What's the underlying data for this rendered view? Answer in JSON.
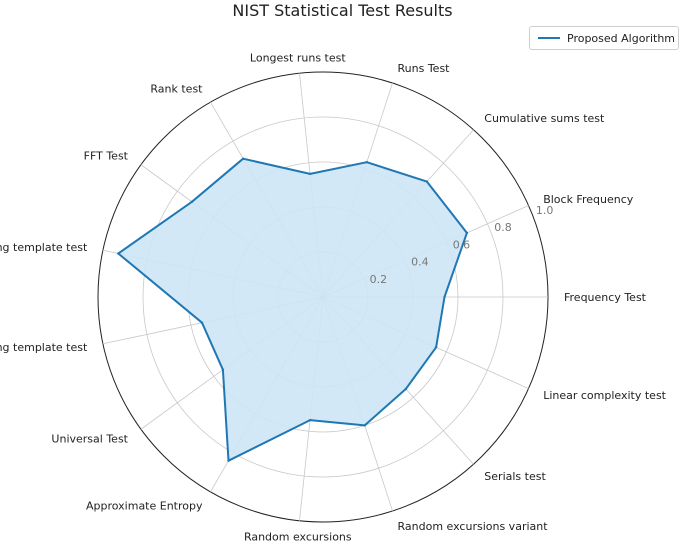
{
  "chart_data": {
    "type": "radar",
    "title": "NIST Statistical Test Results",
    "categories": [
      "Frequency Test",
      "Block Frequency",
      "Cumulative sums test",
      "Runs Test",
      "Longest runs test",
      "Rank test",
      "FFT Test",
      "Non overlapping template test",
      "Overlapping template test",
      "Universal Test",
      "Approximate Entropy",
      "Random excursions",
      "Random excursions variant",
      "Serials test",
      "Linear complexity test"
    ],
    "series": [
      {
        "name": "Proposed Algorithm",
        "color": "#1f77b4",
        "fill": "#cde6f5",
        "values": [
          0.54,
          0.7,
          0.69,
          0.63,
          0.55,
          0.71,
          0.72,
          0.93,
          0.55,
          0.55,
          0.84,
          0.55,
          0.6,
          0.55,
          0.55
        ]
      }
    ],
    "rlim": [
      0,
      1.0
    ],
    "rticks": [
      0.2,
      0.4,
      0.6,
      0.8,
      1.0
    ],
    "rtick_labels": [
      "0.2",
      "0.4",
      "0.6",
      "0.8",
      "1.0"
    ],
    "grid": true,
    "legend_position": "top-right"
  }
}
